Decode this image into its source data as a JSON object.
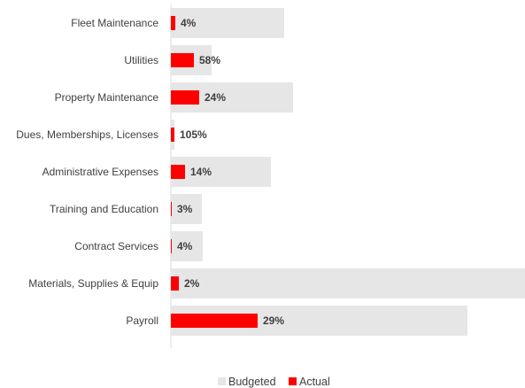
{
  "chart_data": {
    "type": "bar",
    "orientation": "horizontal",
    "categories": [
      "Fleet Maintenance",
      "Utilities",
      "Property Maintenance",
      "Dues, Memberships, Licenses",
      "Administrative Expenses",
      "Training and Education",
      "Contract Services",
      "Materials, Supplies & Equip",
      "Payroll"
    ],
    "series": [
      {
        "name": "Budgeted",
        "color": "#e6e6e6",
        "values": [
          128,
          46,
          138,
          4,
          113,
          35,
          36,
          400,
          335
        ]
      },
      {
        "name": "Actual",
        "color": "#ff0000",
        "values": [
          5,
          26,
          32,
          4,
          16,
          1,
          1,
          9,
          98
        ]
      }
    ],
    "data_labels": [
      "4%",
      "58%",
      "24%",
      "105%",
      "14%",
      "3%",
      "4%",
      "2%",
      "29%"
    ],
    "legend": {
      "position": "bottom"
    },
    "grid": false,
    "title": "",
    "xlabel": "",
    "ylabel": ""
  }
}
